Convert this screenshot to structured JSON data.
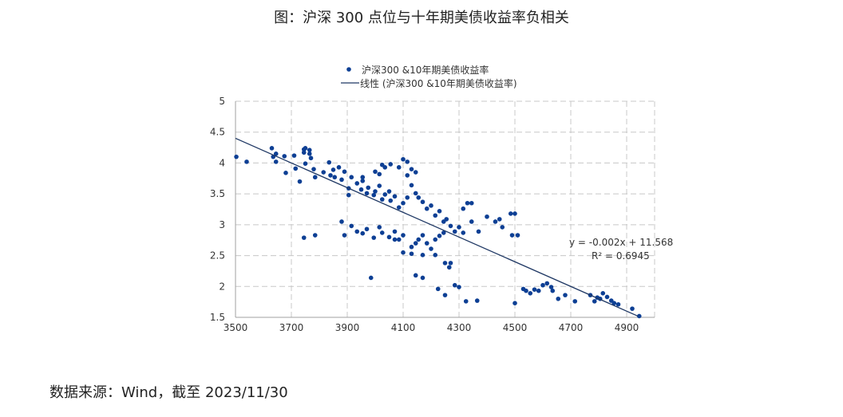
{
  "title": "图：沪深 300 点位与十年期美债收益率负相关",
  "source": "数据来源：Wind，截至 2023/11/30",
  "chart_data": {
    "type": "scatter",
    "title": "图：沪深 300 点位与十年期美债收益率负相关",
    "xlabel": "",
    "ylabel": "",
    "xlim": [
      3500,
      5000
    ],
    "ylim": [
      1.5,
      5
    ],
    "xticks": [
      "3500",
      "3700",
      "3900",
      "4100",
      "4300",
      "4500",
      "4700",
      "4900"
    ],
    "yticks": [
      "5",
      "4.5",
      "4",
      "3.5",
      "3",
      "2.5",
      "2",
      "1.5"
    ],
    "grid": true,
    "legend_position": "top",
    "legend": [
      "沪深300 &10年期美债收益率",
      "线性 (沪深300 &10年期美债收益率)"
    ],
    "point_color": "#0d3f94",
    "line_color": "#1f3864",
    "trendline": {
      "equation": "y = -0.002x + 11.568",
      "r2": "R² = 0.6945",
      "from": [
        3500,
        4.4
      ],
      "to": [
        4940,
        1.52
      ]
    },
    "series": [
      {
        "name": "沪深300 &10年期美债收益率",
        "points": [
          [
            3503,
            4.1
          ],
          [
            3540,
            4.02
          ],
          [
            3630,
            4.24
          ],
          [
            3635,
            4.1
          ],
          [
            3645,
            4.15
          ],
          [
            3645,
            4.02
          ],
          [
            3675,
            4.11
          ],
          [
            3680,
            3.84
          ],
          [
            3710,
            4.12
          ],
          [
            3715,
            3.91
          ],
          [
            3745,
            4.22
          ],
          [
            3750,
            4.24
          ],
          [
            3745,
            4.17
          ],
          [
            3765,
            4.21
          ],
          [
            3765,
            4.15
          ],
          [
            3750,
            3.99
          ],
          [
            3770,
            4.08
          ],
          [
            3730,
            3.7
          ],
          [
            3780,
            3.9
          ],
          [
            3785,
            3.77
          ],
          [
            3815,
            3.85
          ],
          [
            3835,
            4.01
          ],
          [
            3840,
            3.8
          ],
          [
            3850,
            3.89
          ],
          [
            3855,
            3.77
          ],
          [
            3870,
            3.93
          ],
          [
            3880,
            3.73
          ],
          [
            3890,
            3.86
          ],
          [
            3905,
            3.59
          ],
          [
            3915,
            3.77
          ],
          [
            3935,
            3.67
          ],
          [
            3950,
            3.57
          ],
          [
            3955,
            3.71
          ],
          [
            3970,
            3.51
          ],
          [
            3975,
            3.6
          ],
          [
            3995,
            3.48
          ],
          [
            4000,
            3.54
          ],
          [
            4015,
            3.63
          ],
          [
            4025,
            3.41
          ],
          [
            4035,
            3.49
          ],
          [
            4050,
            3.54
          ],
          [
            4055,
            3.39
          ],
          [
            4070,
            3.46
          ],
          [
            4085,
            3.28
          ],
          [
            4100,
            3.35
          ],
          [
            4115,
            3.44
          ],
          [
            4130,
            3.64
          ],
          [
            4145,
            3.51
          ],
          [
            4155,
            3.44
          ],
          [
            4170,
            3.37
          ],
          [
            4185,
            3.26
          ],
          [
            4200,
            3.31
          ],
          [
            4215,
            3.15
          ],
          [
            4230,
            3.22
          ],
          [
            4245,
            3.05
          ],
          [
            4255,
            3.09
          ],
          [
            4270,
            2.98
          ],
          [
            4285,
            2.89
          ],
          [
            4300,
            2.96
          ],
          [
            4315,
            2.87
          ],
          [
            4345,
            3.05
          ],
          [
            4370,
            2.89
          ],
          [
            4400,
            3.13
          ],
          [
            4430,
            3.05
          ],
          [
            4445,
            3.09
          ],
          [
            4455,
            2.96
          ],
          [
            4485,
            3.18
          ],
          [
            4490,
            2.83
          ],
          [
            4025,
            3.97
          ],
          [
            4035,
            3.93
          ],
          [
            4055,
            3.98
          ],
          [
            4085,
            3.93
          ],
          [
            4100,
            4.06
          ],
          [
            4115,
            4.02
          ],
          [
            4130,
            3.9
          ],
          [
            4115,
            3.8
          ],
          [
            4145,
            3.85
          ],
          [
            4000,
            3.86
          ],
          [
            4015,
            3.82
          ],
          [
            3955,
            3.77
          ],
          [
            3905,
            3.48
          ],
          [
            3880,
            3.05
          ],
          [
            3890,
            2.83
          ],
          [
            3915,
            2.98
          ],
          [
            3935,
            2.89
          ],
          [
            3955,
            2.86
          ],
          [
            3970,
            2.93
          ],
          [
            3995,
            2.79
          ],
          [
            4015,
            2.96
          ],
          [
            4025,
            2.87
          ],
          [
            4050,
            2.8
          ],
          [
            4070,
            2.89
          ],
          [
            4085,
            2.76
          ],
          [
            4100,
            2.83
          ],
          [
            4130,
            2.64
          ],
          [
            4145,
            2.7
          ],
          [
            4155,
            2.76
          ],
          [
            4170,
            2.83
          ],
          [
            4185,
            2.7
          ],
          [
            4200,
            2.61
          ],
          [
            4215,
            2.76
          ],
          [
            4230,
            2.82
          ],
          [
            4245,
            2.87
          ],
          [
            4250,
            2.38
          ],
          [
            4265,
            2.31
          ],
          [
            4270,
            2.38
          ],
          [
            4285,
            2.02
          ],
          [
            4300,
            1.99
          ],
          [
            4315,
            3.26
          ],
          [
            4330,
            3.35
          ],
          [
            4345,
            3.35
          ],
          [
            3745,
            2.79
          ],
          [
            3785,
            2.83
          ],
          [
            3985,
            2.14
          ],
          [
            4145,
            2.18
          ],
          [
            4170,
            2.14
          ],
          [
            4225,
            1.96
          ],
          [
            4250,
            1.86
          ],
          [
            4365,
            1.77
          ],
          [
            4500,
            1.73
          ],
          [
            4530,
            1.96
          ],
          [
            4540,
            1.93
          ],
          [
            4555,
            1.89
          ],
          [
            4570,
            1.95
          ],
          [
            4585,
            1.93
          ],
          [
            4600,
            2.02
          ],
          [
            4615,
            2.05
          ],
          [
            4630,
            1.99
          ],
          [
            4635,
            1.93
          ],
          [
            4655,
            1.8
          ],
          [
            4680,
            1.86
          ],
          [
            4715,
            1.76
          ],
          [
            4770,
            1.86
          ],
          [
            4785,
            1.76
          ],
          [
            4795,
            1.82
          ],
          [
            4805,
            1.8
          ],
          [
            4815,
            1.89
          ],
          [
            4830,
            1.83
          ],
          [
            4845,
            1.77
          ],
          [
            4855,
            1.73
          ],
          [
            4870,
            1.71
          ],
          [
            4920,
            1.64
          ],
          [
            4945,
            1.52
          ],
          [
            4130,
            2.53
          ],
          [
            4170,
            2.51
          ],
          [
            4215,
            2.51
          ],
          [
            4100,
            2.55
          ],
          [
            4070,
            2.76
          ],
          [
            4325,
            1.76
          ],
          [
            4500,
            3.18
          ],
          [
            4510,
            2.83
          ]
        ]
      }
    ]
  }
}
